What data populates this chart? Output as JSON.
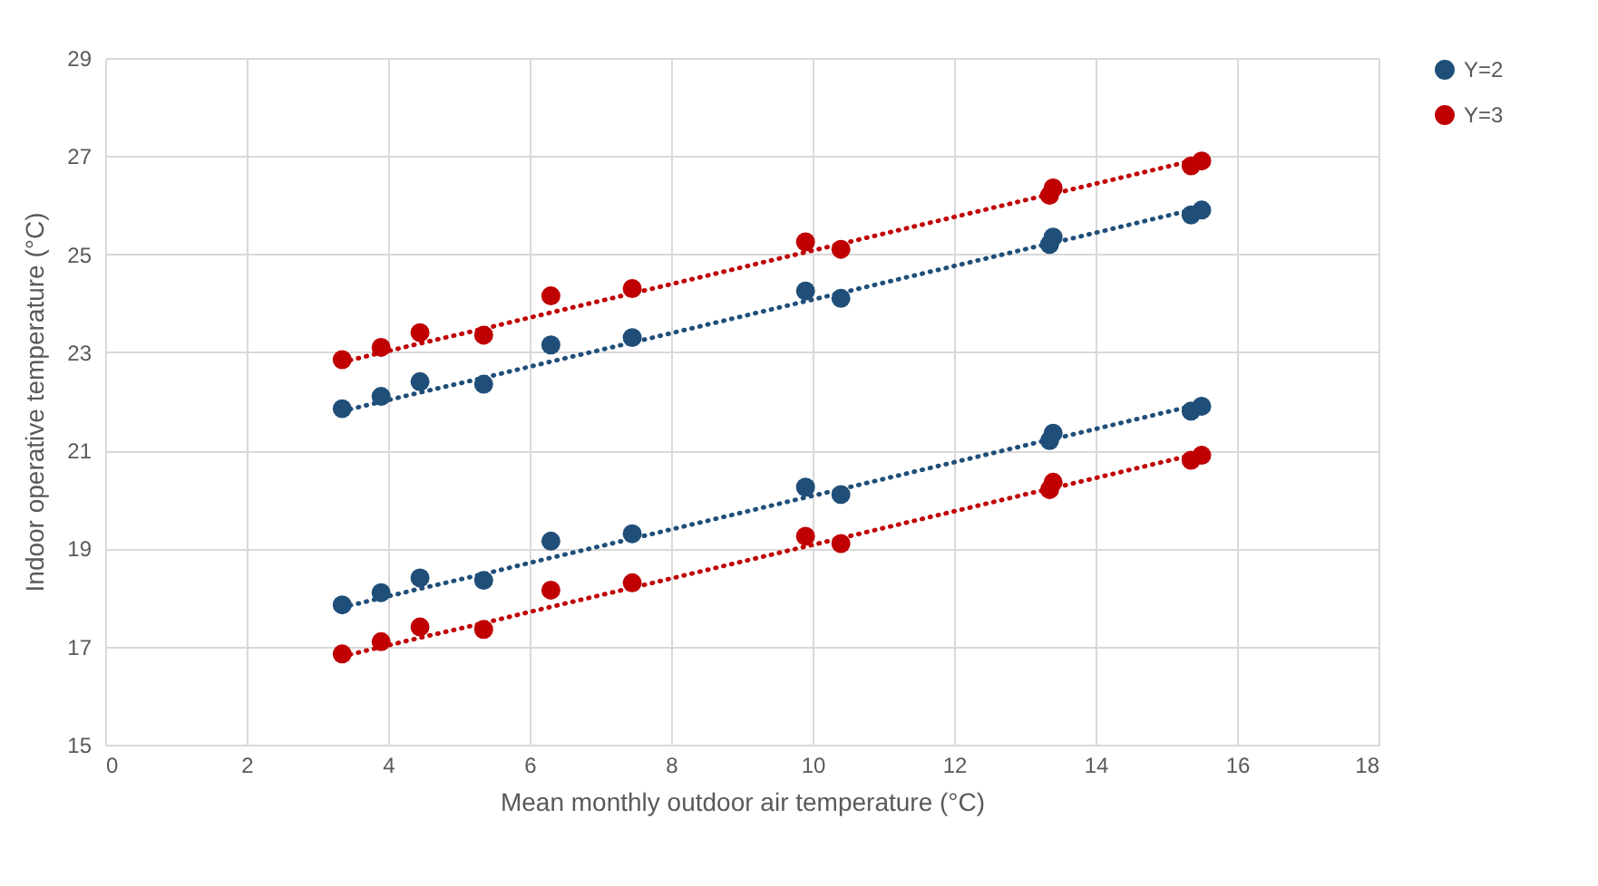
{
  "chart_data": {
    "type": "scatter",
    "xlabel": "Mean monthly outdoor air temperature (°C)",
    "ylabel": "Indoor operative temperature (°C)",
    "x": [
      3.35,
      3.9,
      4.45,
      5.35,
      6.3,
      7.45,
      9.9,
      10.4,
      13.35,
      13.4,
      15.35,
      15.5
    ],
    "series": [
      {
        "name": "Y=2",
        "color": "#1f4e79",
        "values": [
          17.85,
          18.1,
          18.4,
          18.35,
          19.15,
          19.3,
          20.25,
          20.1,
          21.2,
          21.35,
          21.8,
          21.9
        ]
      },
      {
        "name": "Y=3",
        "color": "#c00000",
        "values": [
          16.85,
          17.1,
          17.4,
          17.35,
          18.15,
          18.3,
          19.25,
          19.1,
          20.2,
          20.35,
          20.8,
          20.9
        ]
      },
      {
        "color": "#1f4e79",
        "values": [
          21.85,
          22.1,
          22.4,
          22.35,
          23.15,
          23.3,
          24.25,
          24.1,
          25.2,
          25.35,
          25.8,
          25.9
        ]
      },
      {
        "color": "#c00000",
        "values": [
          22.85,
          23.1,
          23.4,
          23.35,
          24.15,
          24.3,
          25.25,
          25.1,
          26.2,
          26.35,
          26.8,
          26.9
        ]
      },
      {
        "type": "line",
        "color": "#1f4e79",
        "values": [
          17.8,
          17.99,
          18.18,
          18.48,
          18.81,
          19.2,
          20.04,
          20.21,
          21.22,
          21.23,
          21.9,
          21.95
        ],
        "line_style": "dotted",
        "marker": "none"
      },
      {
        "type": "line",
        "color": "#c00000",
        "values": [
          16.8,
          16.99,
          17.18,
          17.48,
          17.81,
          18.2,
          19.04,
          19.21,
          20.22,
          20.23,
          20.9,
          20.95
        ],
        "line_style": "dotted",
        "marker": "none"
      },
      {
        "type": "line",
        "color": "#1f4e79",
        "values": [
          21.8,
          21.99,
          22.18,
          22.48,
          22.81,
          23.2,
          24.04,
          24.21,
          25.22,
          25.23,
          25.9,
          25.95
        ],
        "line_style": "dotted",
        "marker": "none"
      },
      {
        "type": "line",
        "color": "#c00000",
        "values": [
          22.8,
          22.99,
          23.18,
          23.48,
          23.81,
          24.2,
          25.04,
          25.21,
          26.22,
          26.23,
          26.9,
          26.95
        ],
        "line_style": "dotted",
        "marker": "none"
      }
    ],
    "xlim": [
      0,
      18
    ],
    "xticks": [
      0,
      2,
      4,
      6,
      8,
      10,
      12,
      14,
      16,
      18
    ],
    "ylim": [
      15,
      29
    ],
    "yticks": [
      15,
      17,
      19,
      21,
      23,
      25,
      27,
      29
    ],
    "grid": true,
    "legend": "top right",
    "marker": "circle"
  }
}
